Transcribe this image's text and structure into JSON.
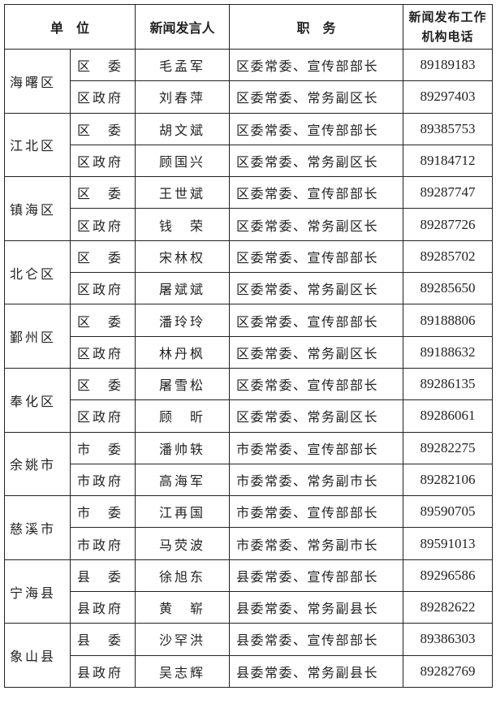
{
  "header": {
    "unit": "单　位",
    "spokesperson": "新闻发言人",
    "position": "职　务",
    "phone": "新闻发布工作机构电话"
  },
  "regions": [
    {
      "name": "海曙区",
      "rows": [
        {
          "unit": "区　委",
          "name": "毛孟军",
          "position": "区委常委、宣传部部长",
          "phone": "89189183"
        },
        {
          "unit": "区政府",
          "name": "刘春萍",
          "position": "区委常委、常务副区长",
          "phone": "89297403"
        }
      ]
    },
    {
      "name": "江北区",
      "rows": [
        {
          "unit": "区　委",
          "name": "胡文斌",
          "position": "区委常委、宣传部部长",
          "phone": "89385753"
        },
        {
          "unit": "区政府",
          "name": "顾国兴",
          "position": "区委常委、常务副区长",
          "phone": "89184712"
        }
      ]
    },
    {
      "name": "镇海区",
      "rows": [
        {
          "unit": "区　委",
          "name": "王世斌",
          "position": "区委常委、宣传部部长",
          "phone": "89287747"
        },
        {
          "unit": "区政府",
          "name": "钱　荣",
          "position": "区委常委、常务副区长",
          "phone": "89287726"
        }
      ]
    },
    {
      "name": "北仑区",
      "rows": [
        {
          "unit": "区　委",
          "name": "宋林权",
          "position": "区委常委、宣传部部长",
          "phone": "89285702"
        },
        {
          "unit": "区政府",
          "name": "屠斌斌",
          "position": "区委常委、常务副区长",
          "phone": "89285650"
        }
      ]
    },
    {
      "name": "鄞州区",
      "rows": [
        {
          "unit": "区　委",
          "name": "潘玲玲",
          "position": "区委常委、宣传部部长",
          "phone": "89188806"
        },
        {
          "unit": "区政府",
          "name": "林丹枫",
          "position": "区委常委、常务副区长",
          "phone": "89188632"
        }
      ]
    },
    {
      "name": "奉化区",
      "rows": [
        {
          "unit": "区　委",
          "name": "屠雪松",
          "position": "区委常委、宣传部部长",
          "phone": "89286135"
        },
        {
          "unit": "区政府",
          "name": "顾　昕",
          "position": "区委常委、常务副区长",
          "phone": "89286061"
        }
      ]
    },
    {
      "name": "余姚市",
      "rows": [
        {
          "unit": "市　委",
          "name": "潘帅轶",
          "position": "市委常委、宣传部部长",
          "phone": "89282275"
        },
        {
          "unit": "市政府",
          "name": "高海军",
          "position": "市委常委、常务副市长",
          "phone": "89282106"
        }
      ]
    },
    {
      "name": "慈溪市",
      "rows": [
        {
          "unit": "市　委",
          "name": "江再国",
          "position": "市委常委、宣传部部长",
          "phone": "89590705"
        },
        {
          "unit": "市政府",
          "name": "马荧波",
          "position": "市委常委、常务副市长",
          "phone": "89591013"
        }
      ]
    },
    {
      "name": "宁海县",
      "rows": [
        {
          "unit": "县　委",
          "name": "徐旭东",
          "position": "县委常委、宣传部部长",
          "phone": "89296586"
        },
        {
          "unit": "县政府",
          "name": "黄　崭",
          "position": "县委常委、常务副县长",
          "phone": "89282622"
        }
      ]
    },
    {
      "name": "象山县",
      "rows": [
        {
          "unit": "县　委",
          "name": "沙罕洪",
          "position": "县委常委、宣传部部长",
          "phone": "89386303"
        },
        {
          "unit": "县政府",
          "name": "吴志辉",
          "position": "县委常委、常务副县长",
          "phone": "89282769"
        }
      ]
    }
  ]
}
